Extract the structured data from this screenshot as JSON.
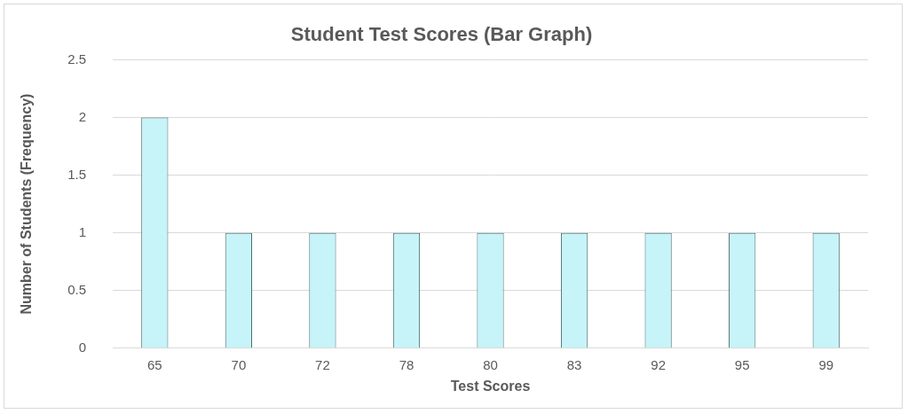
{
  "chart_data": {
    "type": "bar",
    "title": "Student Test Scores (Bar Graph)",
    "x_label": "Test Scores",
    "y_label": "Number of Students (Frequency)",
    "categories": [
      "65",
      "70",
      "72",
      "78",
      "80",
      "83",
      "92",
      "95",
      "99"
    ],
    "values": [
      2,
      1,
      1,
      1,
      1,
      1,
      1,
      1,
      1
    ],
    "color": "#c6f4f8",
    "ylim": [
      0,
      2.5
    ],
    "yticks": [
      0,
      0.5,
      1,
      1.5,
      2,
      2.5
    ],
    "grid": true
  }
}
